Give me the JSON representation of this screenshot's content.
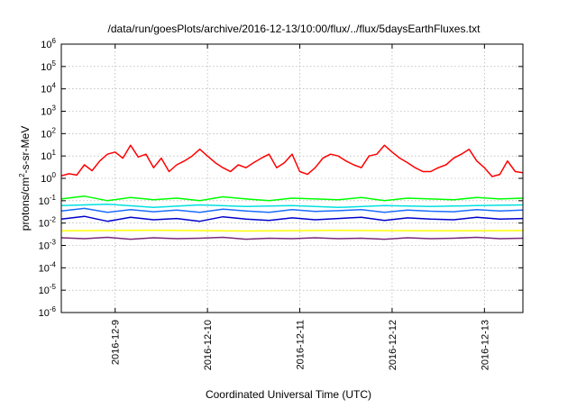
{
  "chart_data": {
    "type": "line",
    "title": "/data/run/goesPlots/archive/2016-12-13/10:00/flux/../flux/5daysEarthFluxes.txt",
    "xlabel": "Coordinated Universal Time (UTC)",
    "ylabel": {
      "prefix": "protons/cm",
      "sup": "2",
      "suffix": "-s-sr-MeV"
    },
    "yscale": "log",
    "ylim": [
      1e-06,
      1000000.0
    ],
    "y_ticks": [
      {
        "base": "10",
        "exp": "-6",
        "value": 1e-06
      },
      {
        "base": "10",
        "exp": "-5",
        "value": 1e-05
      },
      {
        "base": "10",
        "exp": "-4",
        "value": 0.0001
      },
      {
        "base": "10",
        "exp": "-3",
        "value": 0.001
      },
      {
        "base": "10",
        "exp": "-2",
        "value": 0.01
      },
      {
        "base": "10",
        "exp": "-1",
        "value": 0.1
      },
      {
        "base": "10",
        "exp": "0",
        "value": 1
      },
      {
        "base": "10",
        "exp": "1",
        "value": 10
      },
      {
        "base": "10",
        "exp": "2",
        "value": 100
      },
      {
        "base": "10",
        "exp": "3",
        "value": 1000
      },
      {
        "base": "10",
        "exp": "4",
        "value": 10000
      },
      {
        "base": "10",
        "exp": "5",
        "value": 100000
      },
      {
        "base": "10",
        "exp": "6",
        "value": 1000000
      }
    ],
    "xlim": [
      "2016-12-08T10:00",
      "2016-12-13T10:00"
    ],
    "x_ticks": [
      {
        "label": "2016-12-9",
        "value": "2016-12-09T00:00"
      },
      {
        "label": "2016-12-10",
        "value": "2016-12-10T00:00"
      },
      {
        "label": "2016-12-11",
        "value": "2016-12-11T00:00"
      },
      {
        "label": "2016-12-12",
        "value": "2016-12-12T00:00"
      },
      {
        "label": "2016-12-13",
        "value": "2016-12-13T00:00"
      }
    ],
    "grid": true,
    "legend": "none",
    "series": [
      {
        "color": "#ff0000",
        "x": [
          "2016-12-08T10:00",
          "2016-12-08T12:00",
          "2016-12-08T14:00",
          "2016-12-08T16:00",
          "2016-12-08T18:00",
          "2016-12-08T20:00",
          "2016-12-08T22:00",
          "2016-12-09T00:00",
          "2016-12-09T02:00",
          "2016-12-09T04:00",
          "2016-12-09T06:00",
          "2016-12-09T08:00",
          "2016-12-09T10:00",
          "2016-12-09T12:00",
          "2016-12-09T14:00",
          "2016-12-09T16:00",
          "2016-12-09T18:00",
          "2016-12-09T20:00",
          "2016-12-09T22:00",
          "2016-12-10T00:00",
          "2016-12-10T02:00",
          "2016-12-10T04:00",
          "2016-12-10T06:00",
          "2016-12-10T08:00",
          "2016-12-10T10:00",
          "2016-12-10T12:00",
          "2016-12-10T14:00",
          "2016-12-10T16:00",
          "2016-12-10T18:00",
          "2016-12-10T20:00",
          "2016-12-10T22:00",
          "2016-12-11T00:00",
          "2016-12-11T02:00",
          "2016-12-11T04:00",
          "2016-12-11T06:00",
          "2016-12-11T08:00",
          "2016-12-11T10:00",
          "2016-12-11T12:00",
          "2016-12-11T14:00",
          "2016-12-11T16:00",
          "2016-12-11T18:00",
          "2016-12-11T20:00",
          "2016-12-11T22:00",
          "2016-12-12T00:00",
          "2016-12-12T02:00",
          "2016-12-12T04:00",
          "2016-12-12T06:00",
          "2016-12-12T08:00",
          "2016-12-12T10:00",
          "2016-12-12T12:00",
          "2016-12-12T14:00",
          "2016-12-12T16:00",
          "2016-12-12T18:00",
          "2016-12-12T20:00",
          "2016-12-12T22:00",
          "2016-12-13T00:00",
          "2016-12-13T02:00",
          "2016-12-13T04:00",
          "2016-12-13T06:00",
          "2016-12-13T08:00",
          "2016-12-13T10:00"
        ],
        "y": [
          1.3,
          1.6,
          1.4,
          4,
          2.2,
          6,
          12,
          15,
          8,
          30,
          9,
          12,
          3,
          8,
          2,
          4,
          6,
          10,
          20,
          10,
          5,
          3,
          2,
          4,
          3,
          5,
          8,
          12,
          3,
          5,
          12,
          2,
          1.5,
          3,
          8,
          12,
          10,
          6,
          4,
          3,
          10,
          12,
          30,
          15,
          8,
          5,
          3,
          2,
          2,
          3,
          4,
          8,
          12,
          20,
          6,
          3,
          1.2,
          1.5,
          6,
          2,
          1.8
        ]
      },
      {
        "color": "#00ff00",
        "x": [
          "2016-12-08T10:00",
          "2016-12-08T16:00",
          "2016-12-08T22:00",
          "2016-12-09T04:00",
          "2016-12-09T10:00",
          "2016-12-09T16:00",
          "2016-12-09T22:00",
          "2016-12-10T04:00",
          "2016-12-10T10:00",
          "2016-12-10T16:00",
          "2016-12-10T22:00",
          "2016-12-11T04:00",
          "2016-12-11T10:00",
          "2016-12-11T16:00",
          "2016-12-11T22:00",
          "2016-12-12T04:00",
          "2016-12-12T10:00",
          "2016-12-12T16:00",
          "2016-12-12T22:00",
          "2016-12-13T04:00",
          "2016-12-13T10:00"
        ],
        "y": [
          0.12,
          0.16,
          0.1,
          0.14,
          0.11,
          0.13,
          0.1,
          0.15,
          0.12,
          0.1,
          0.13,
          0.12,
          0.11,
          0.14,
          0.1,
          0.13,
          0.12,
          0.11,
          0.14,
          0.12,
          0.13
        ]
      },
      {
        "color": "#00e0e0",
        "x": [
          "2016-12-08T10:00",
          "2016-12-08T22:00",
          "2016-12-09T10:00",
          "2016-12-09T22:00",
          "2016-12-10T10:00",
          "2016-12-10T22:00",
          "2016-12-11T10:00",
          "2016-12-11T22:00",
          "2016-12-12T10:00",
          "2016-12-12T22:00",
          "2016-12-13T10:00"
        ],
        "y": [
          0.06,
          0.07,
          0.05,
          0.065,
          0.055,
          0.06,
          0.05,
          0.06,
          0.055,
          0.06,
          0.065
        ]
      },
      {
        "color": "#1a6cff",
        "x": [
          "2016-12-08T10:00",
          "2016-12-08T16:00",
          "2016-12-08T22:00",
          "2016-12-09T04:00",
          "2016-12-09T10:00",
          "2016-12-09T16:00",
          "2016-12-09T22:00",
          "2016-12-10T04:00",
          "2016-12-10T10:00",
          "2016-12-10T16:00",
          "2016-12-10T22:00",
          "2016-12-11T04:00",
          "2016-12-11T10:00",
          "2016-12-11T16:00",
          "2016-12-11T22:00",
          "2016-12-12T04:00",
          "2016-12-12T10:00",
          "2016-12-12T16:00",
          "2016-12-12T22:00",
          "2016-12-13T04:00",
          "2016-12-13T10:00"
        ],
        "y": [
          0.035,
          0.045,
          0.03,
          0.04,
          0.032,
          0.038,
          0.03,
          0.042,
          0.035,
          0.03,
          0.04,
          0.033,
          0.036,
          0.04,
          0.03,
          0.038,
          0.034,
          0.032,
          0.04,
          0.035,
          0.038
        ]
      },
      {
        "color": "#0000cc",
        "x": [
          "2016-12-08T10:00",
          "2016-12-08T16:00",
          "2016-12-08T22:00",
          "2016-12-09T04:00",
          "2016-12-09T10:00",
          "2016-12-09T16:00",
          "2016-12-09T22:00",
          "2016-12-10T04:00",
          "2016-12-10T10:00",
          "2016-12-10T16:00",
          "2016-12-10T22:00",
          "2016-12-11T04:00",
          "2016-12-11T10:00",
          "2016-12-11T16:00",
          "2016-12-11T22:00",
          "2016-12-12T04:00",
          "2016-12-12T10:00",
          "2016-12-12T16:00",
          "2016-12-12T22:00",
          "2016-12-13T04:00",
          "2016-12-13T10:00"
        ],
        "y": [
          0.015,
          0.02,
          0.012,
          0.018,
          0.014,
          0.016,
          0.012,
          0.019,
          0.015,
          0.013,
          0.017,
          0.014,
          0.016,
          0.018,
          0.013,
          0.017,
          0.015,
          0.014,
          0.018,
          0.015,
          0.016
        ]
      },
      {
        "color": "#ffff00",
        "x": [
          "2016-12-08T10:00",
          "2016-12-09T10:00",
          "2016-12-10T10:00",
          "2016-12-11T10:00",
          "2016-12-12T10:00",
          "2016-12-13T10:00"
        ],
        "y": [
          0.0045,
          0.0048,
          0.0044,
          0.0047,
          0.0045,
          0.0046
        ]
      },
      {
        "color": "#7a2a7a",
        "x": [
          "2016-12-08T10:00",
          "2016-12-08T16:00",
          "2016-12-08T22:00",
          "2016-12-09T04:00",
          "2016-12-09T10:00",
          "2016-12-09T16:00",
          "2016-12-09T22:00",
          "2016-12-10T04:00",
          "2016-12-10T10:00",
          "2016-12-10T16:00",
          "2016-12-10T22:00",
          "2016-12-11T04:00",
          "2016-12-11T10:00",
          "2016-12-11T16:00",
          "2016-12-11T22:00",
          "2016-12-12T04:00",
          "2016-12-12T10:00",
          "2016-12-12T16:00",
          "2016-12-12T22:00",
          "2016-12-13T04:00",
          "2016-12-13T10:00"
        ],
        "y": [
          0.0022,
          0.002,
          0.0023,
          0.0019,
          0.0022,
          0.002,
          0.0021,
          0.0023,
          0.0019,
          0.0021,
          0.002,
          0.0022,
          0.002,
          0.0021,
          0.0019,
          0.0022,
          0.002,
          0.0021,
          0.0023,
          0.002,
          0.0021
        ]
      }
    ]
  }
}
